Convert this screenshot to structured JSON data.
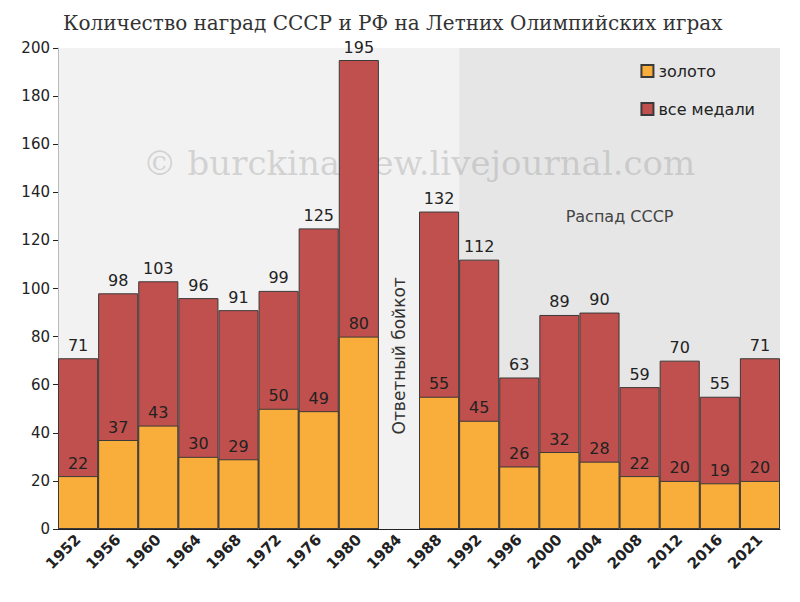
{
  "chart_data": {
    "type": "bar",
    "title": "Количество наград СССР и РФ на Летних Олимпийских играх",
    "categories": [
      "1952",
      "1956",
      "1960",
      "1964",
      "1968",
      "1972",
      "1976",
      "1980",
      "1984",
      "1988",
      "1992",
      "1996",
      "2000",
      "2004",
      "2008",
      "2012",
      "2016",
      "2021"
    ],
    "series": [
      {
        "name": "золото",
        "color": "#f9ad3b",
        "values": [
          22,
          37,
          43,
          30,
          29,
          50,
          49,
          80,
          null,
          55,
          45,
          26,
          32,
          28,
          22,
          20,
          19,
          20
        ]
      },
      {
        "name": "все медали",
        "color": "#c0504d",
        "values": [
          71,
          98,
          103,
          96,
          91,
          99,
          125,
          195,
          null,
          132,
          112,
          63,
          89,
          90,
          59,
          70,
          55,
          71
        ]
      }
    ],
    "ylim": [
      0,
      200
    ],
    "yticks": [
      0,
      20,
      40,
      60,
      80,
      100,
      120,
      140,
      160,
      180,
      200
    ],
    "grid": false,
    "stacked": false,
    "data_labels": true,
    "legend": "upper right",
    "annotations": [
      {
        "text": "Ответный бойкот",
        "x": "1984"
      },
      {
        "text": "Распад СССР",
        "x": "1992"
      },
      {
        "text": "© burckina-new.livejournal.com"
      }
    ]
  }
}
